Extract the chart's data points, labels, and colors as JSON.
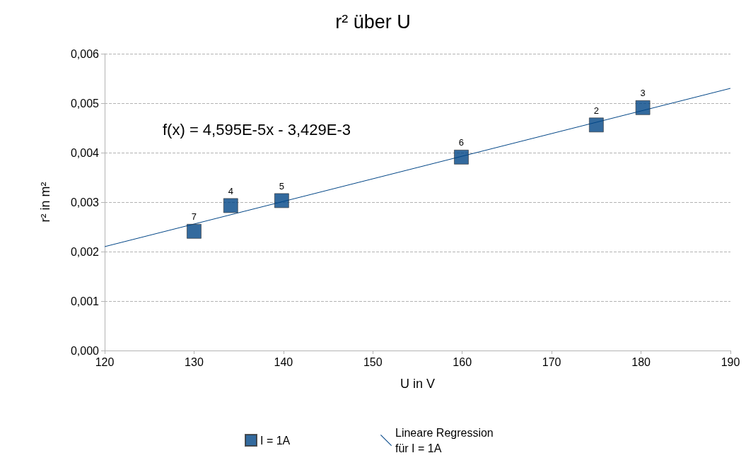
{
  "chart_data": {
    "type": "scatter",
    "title": "r² über U",
    "xlabel": "U in V",
    "ylabel": "r² in m²",
    "annotations": [
      "f(x) = 4,595E-5x - 3,429E-3",
      {
        "text": "7",
        "x": 130.0,
        "y": 0.00241
      },
      {
        "text": "4",
        "x": 134.1,
        "y": 0.00293
      },
      {
        "text": "5",
        "x": 139.8,
        "y": 0.00303
      },
      {
        "text": "6",
        "x": 159.9,
        "y": 0.00391
      },
      {
        "text": "2",
        "x": 175.0,
        "y": 0.00456
      },
      {
        "text": "3",
        "x": 180.2,
        "y": 0.00491
      }
    ],
    "series": [
      {
        "name": "I = 1A",
        "color": "#004586",
        "marker": "square",
        "x": [
          130.0,
          134.1,
          139.8,
          159.9,
          175.0,
          180.2
        ],
        "values": [
          0.00241,
          0.00293,
          0.00303,
          0.00391,
          0.00456,
          0.00491
        ]
      },
      {
        "name": "Lineare Regression für I = 1A",
        "type": "line",
        "color": "#004586",
        "marker": "none",
        "x": [
          120,
          190
        ],
        "values": [
          0.0021,
          0.0053
        ]
      }
    ],
    "xlim": [
      120,
      190
    ],
    "xticks": [
      120,
      130,
      140,
      150,
      160,
      170,
      180,
      190
    ],
    "ylim": [
      0,
      0.006
    ],
    "yticks": [
      {
        "value": 0,
        "label": "0,000"
      },
      {
        "value": 0.001,
        "label": "0,001"
      },
      {
        "value": 0.002,
        "label": "0,002"
      },
      {
        "value": 0.003,
        "label": "0,003"
      },
      {
        "value": 0.004,
        "label": "0,004"
      },
      {
        "value": 0.005,
        "label": "0,005"
      },
      {
        "value": 0.006,
        "label": "0,006"
      }
    ],
    "grid": "y",
    "legend": "bottom"
  }
}
